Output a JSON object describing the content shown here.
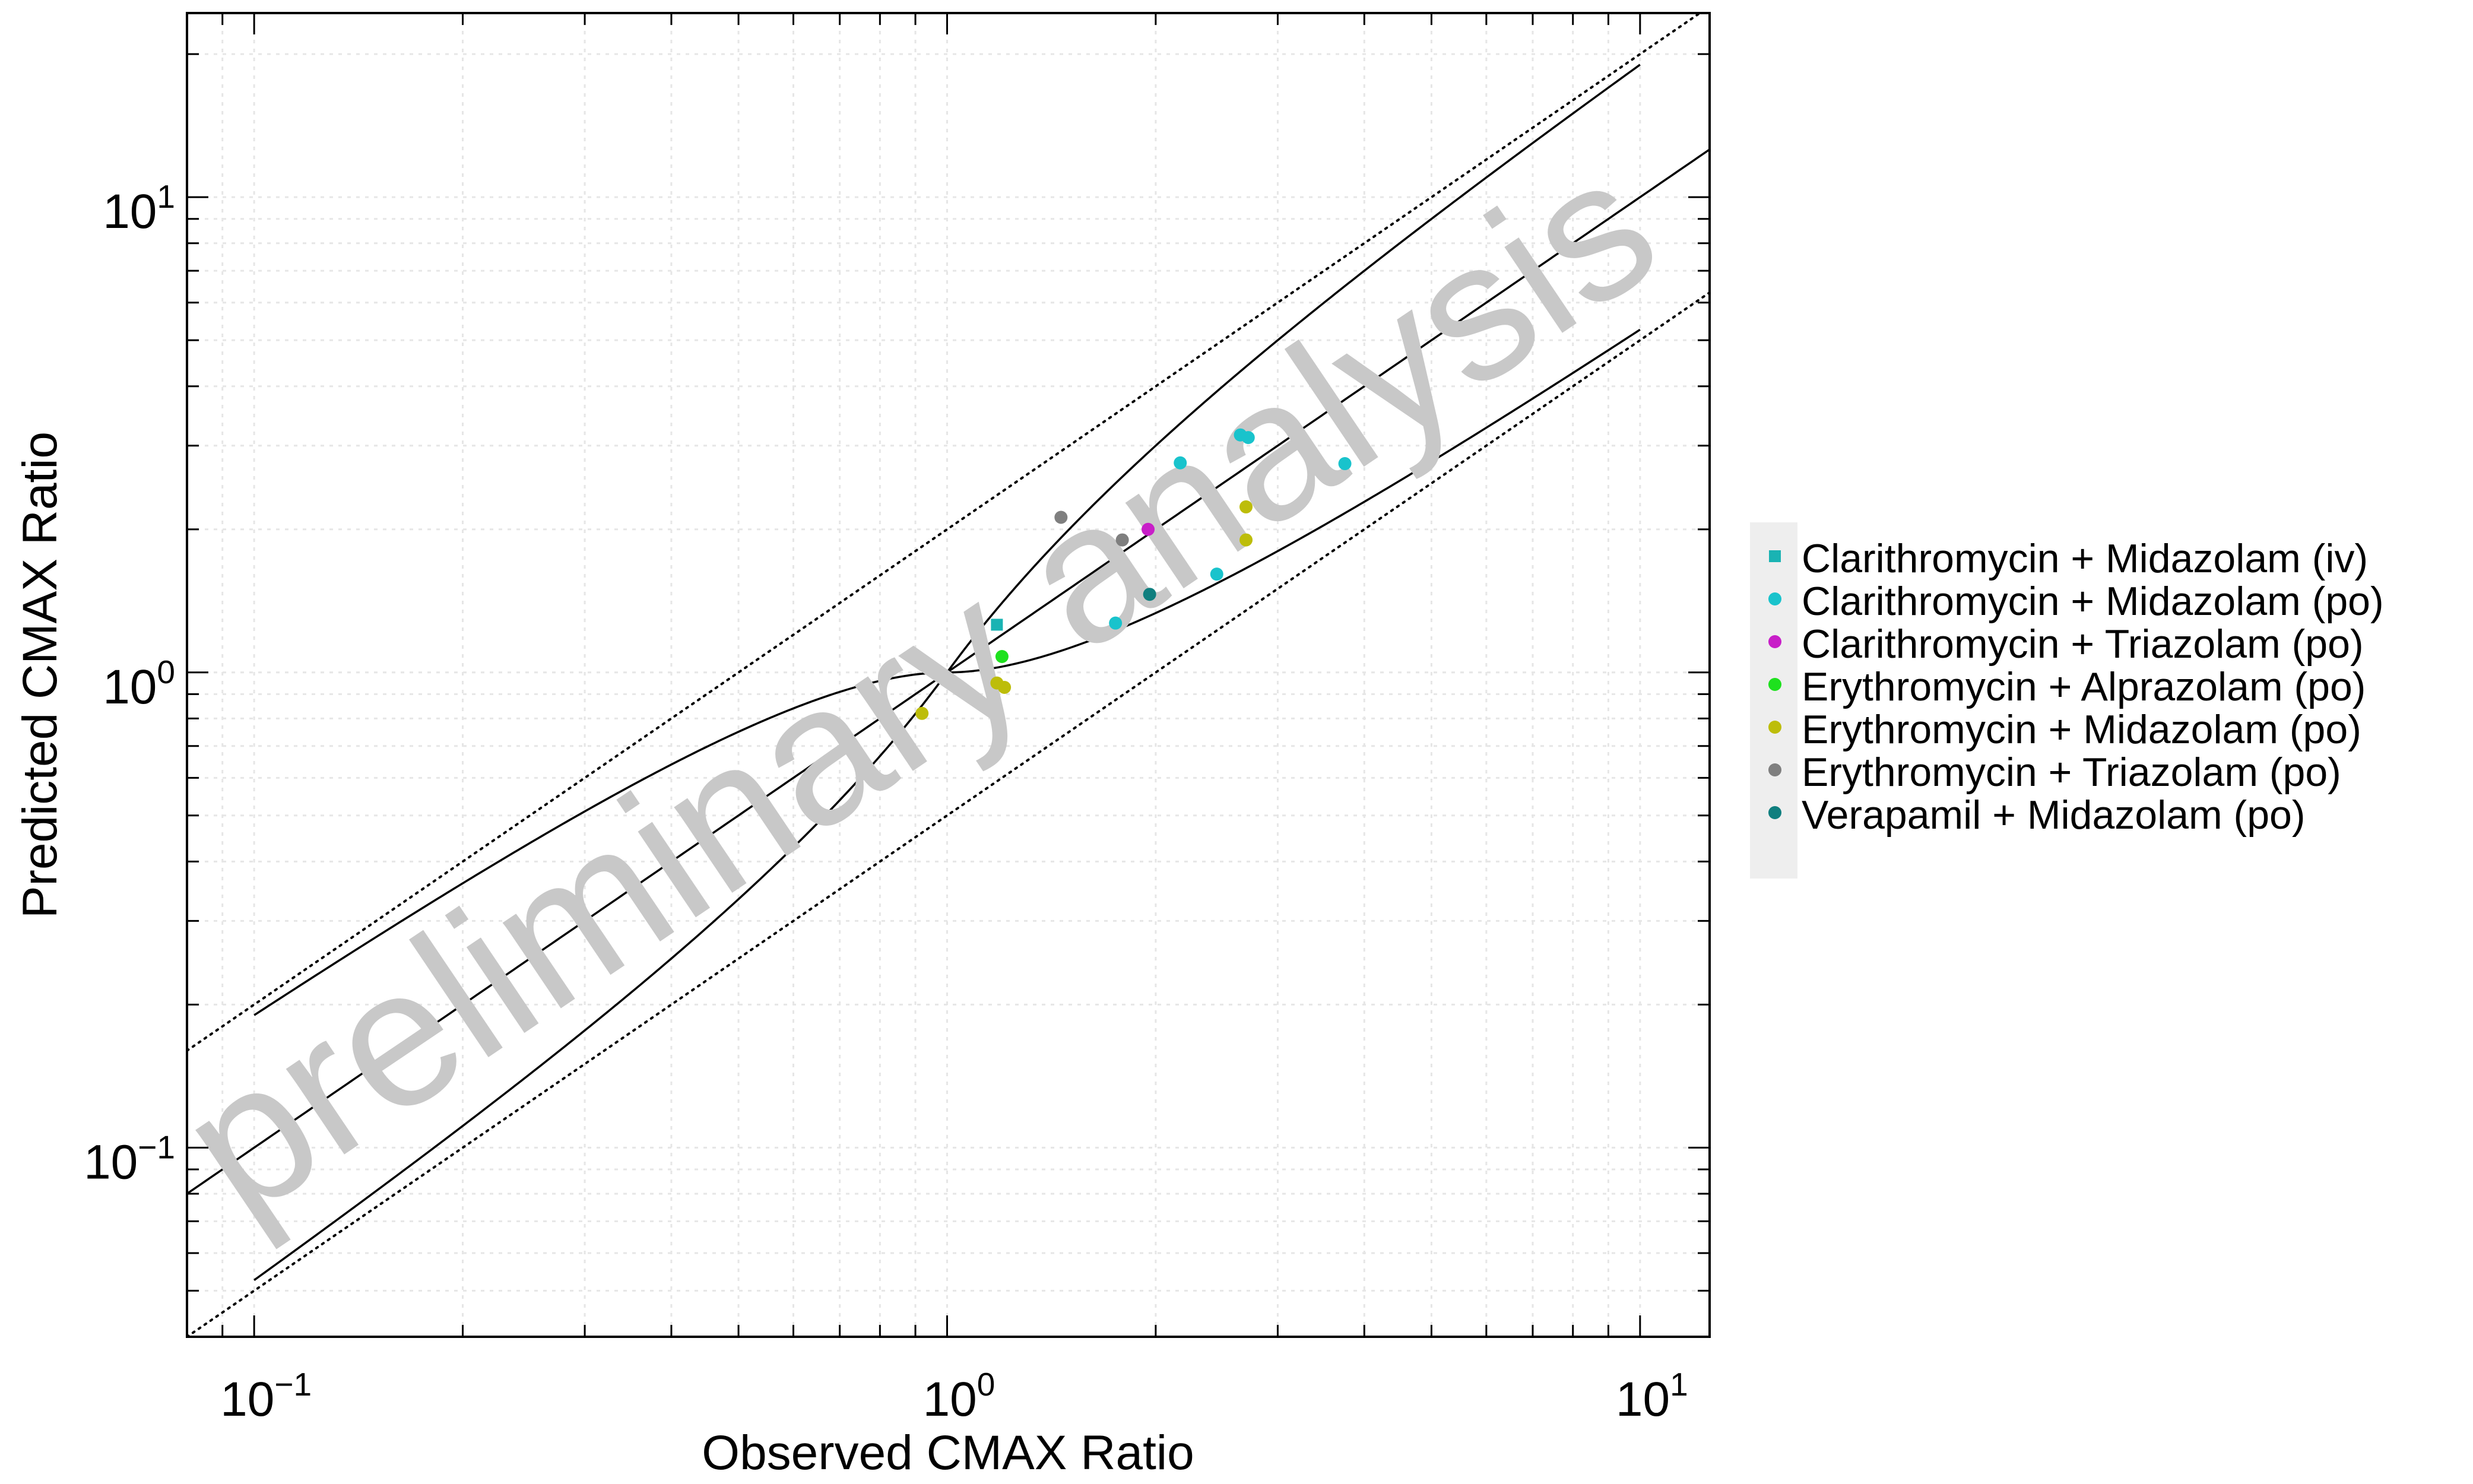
{
  "chart_data": {
    "type": "scatter",
    "xlabel": "Observed CMAX Ratio",
    "ylabel": "Predicted CMAX Ratio",
    "xscale": "log",
    "yscale": "log",
    "xlim": [
      0.08,
      12.6
    ],
    "ylim": [
      0.04,
      24.4
    ],
    "grid": true,
    "legend_position": "right",
    "watermark": "preliminary analysis",
    "x_ticks": [
      {
        "value": 0.1,
        "base": "10",
        "exp": "−1"
      },
      {
        "value": 1,
        "base": "10",
        "exp": "0"
      },
      {
        "value": 10,
        "base": "10",
        "exp": "1"
      }
    ],
    "y_ticks": [
      {
        "value": 0.1,
        "base": "10",
        "exp": "−1"
      },
      {
        "value": 1,
        "base": "10",
        "exp": "0"
      },
      {
        "value": 10,
        "base": "10",
        "exp": "1"
      }
    ],
    "series": [
      {
        "name": "Clarithromycin + Midazolam (iv)",
        "color": "#1ab3b3",
        "marker": "square",
        "points": [
          [
            1.18,
            1.26
          ]
        ]
      },
      {
        "name": "Clarithromycin + Midazolam (po)",
        "color": "#19c3cc",
        "marker": "circle",
        "points": [
          [
            1.75,
            1.27
          ],
          [
            2.17,
            2.76
          ],
          [
            2.45,
            1.61
          ],
          [
            2.65,
            3.16
          ],
          [
            2.72,
            3.12
          ],
          [
            3.75,
            2.75
          ]
        ]
      },
      {
        "name": "Clarithromycin + Triazolam (po)",
        "color": "#c81ec8",
        "marker": "circle",
        "points": [
          [
            1.95,
            2.0
          ]
        ]
      },
      {
        "name": "Erythromycin + Alprazolam (po)",
        "color": "#1ee11e",
        "marker": "circle",
        "points": [
          [
            1.2,
            1.08
          ]
        ]
      },
      {
        "name": "Erythromycin + Midazolam (po)",
        "color": "#bdbd0a",
        "marker": "circle",
        "points": [
          [
            0.92,
            0.82
          ],
          [
            1.18,
            0.95
          ],
          [
            1.21,
            0.93
          ],
          [
            2.7,
            2.23
          ],
          [
            2.7,
            1.9
          ]
        ]
      },
      {
        "name": "Erythromycin + Triazolam (po)",
        "color": "#7f7f7f",
        "marker": "circle",
        "points": [
          [
            1.46,
            2.12
          ],
          [
            1.79,
            1.9
          ]
        ]
      },
      {
        "name": "Verapamil + Midazolam (po)",
        "color": "#0f7f7f",
        "marker": "circle",
        "points": [
          [
            1.96,
            1.46
          ]
        ]
      }
    ],
    "reference_lines": [
      {
        "id": "unity",
        "style": "solid",
        "description": "y = x"
      },
      {
        "id": "two-fold-upper",
        "style": "dotted",
        "description": "y = 2x"
      },
      {
        "id": "two-fold-lower",
        "style": "dotted",
        "description": "y = x/2"
      },
      {
        "id": "guest-upper",
        "style": "solid"
      },
      {
        "id": "guest-lower",
        "style": "solid"
      }
    ]
  }
}
